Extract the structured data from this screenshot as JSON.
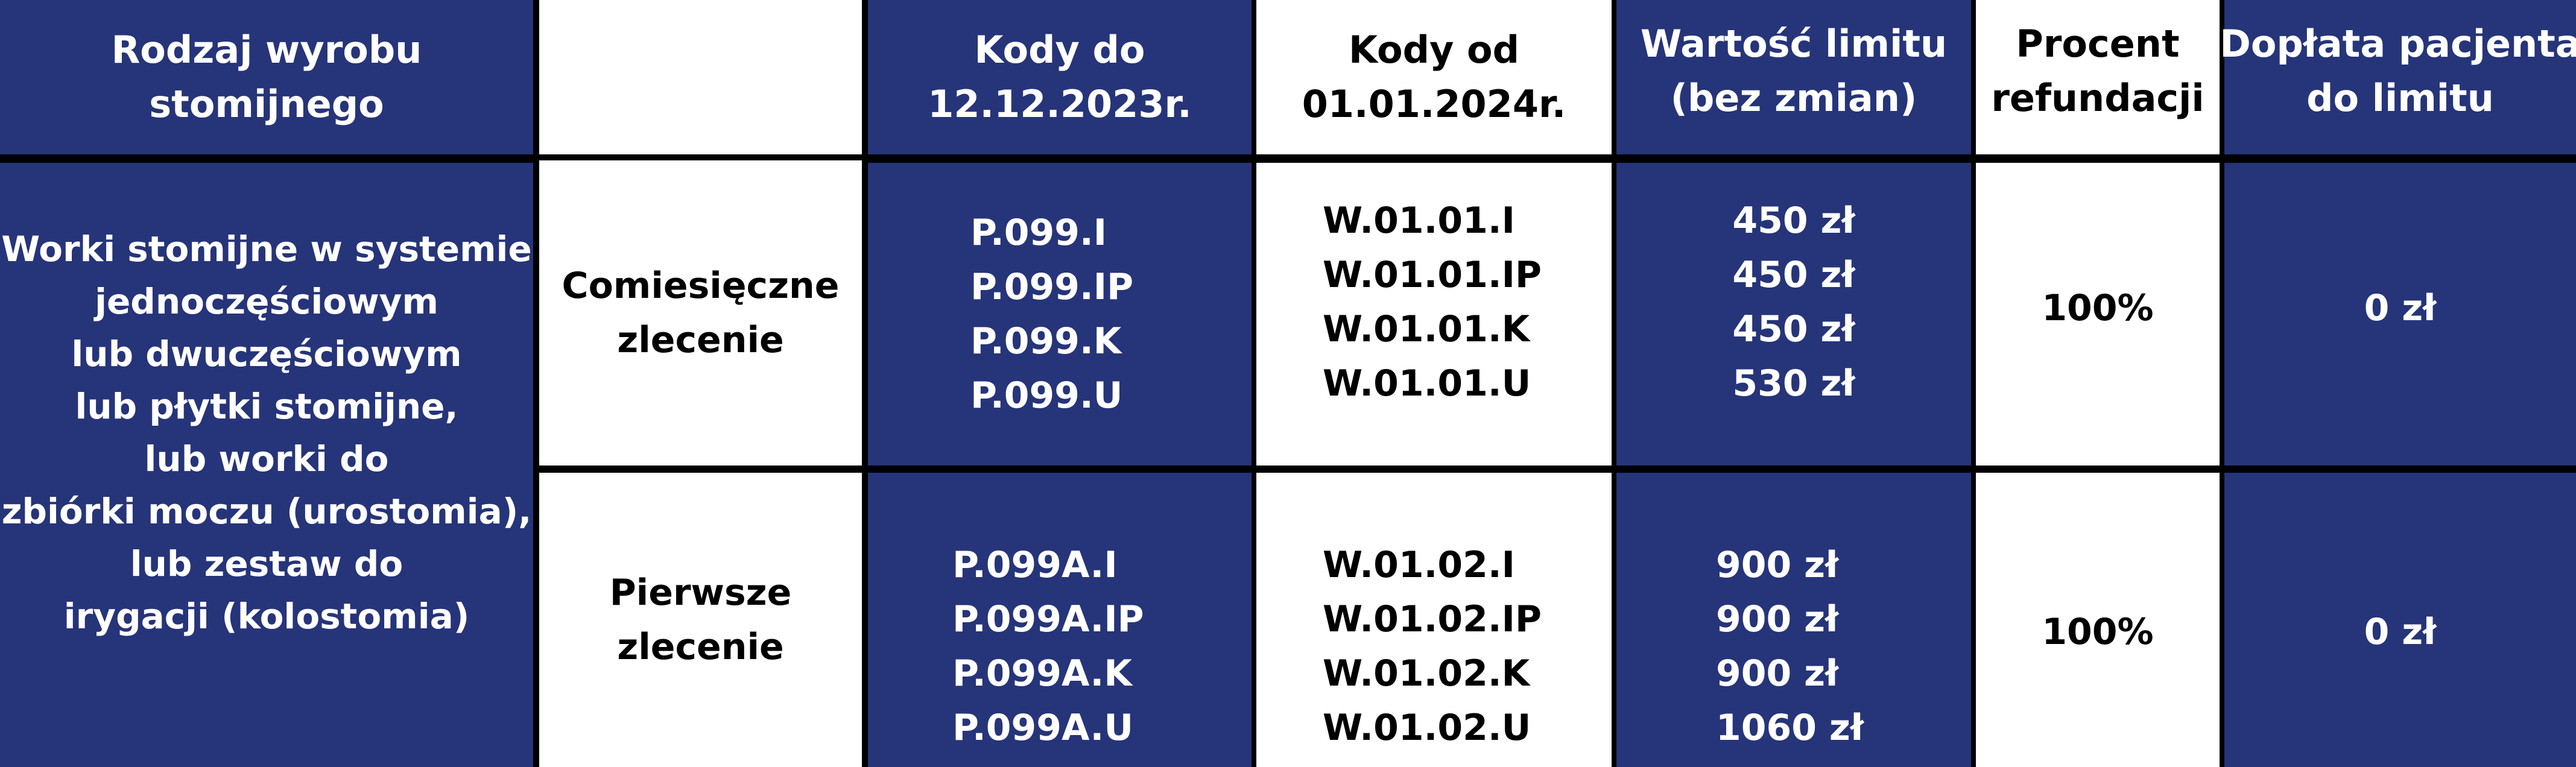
{
  "colors": {
    "blue": "#263479",
    "white": "#ffffff",
    "border": "#000000"
  },
  "header": {
    "col1": [
      "Rodzaj wyrobu",
      "stomijnego"
    ],
    "col2": [],
    "col3": [
      "Kody do",
      "12.12.2023r."
    ],
    "col4": [
      "Kody od",
      "01.01.2024r."
    ],
    "col5": [
      "Wartość limitu",
      "(bez zmian)"
    ],
    "col6": [
      "Procent",
      "refundacji"
    ],
    "col7": [
      "Dopłata pacjenta",
      "do limitu"
    ]
  },
  "product": [
    "Worki stomijne w systemie",
    "jednoczęściowym",
    "lub dwuczęściowym",
    "lub płytki stomijne,",
    "lub worki do",
    "zbiórki moczu (urostomia),",
    "lub zestaw do",
    "irygacji (kolostomia)"
  ],
  "rows": [
    {
      "type": [
        "Comiesięczne",
        "zlecenie"
      ],
      "old_codes": [
        "P.099.I",
        "P.099.IP",
        "P.099.K",
        "P.099.U"
      ],
      "new_codes": [
        "W.01.01.I",
        "W.01.01.IP",
        "W.01.01.K",
        "W.01.01.U"
      ],
      "limits": [
        "450 zł",
        "450 zł",
        "450 zł",
        "530 zł"
      ],
      "refund": "100%",
      "copay": "0 zł"
    },
    {
      "type": [
        "Pierwsze",
        "zlecenie"
      ],
      "old_codes": [
        "P.099A.I",
        "P.099A.IP",
        "P.099A.K",
        "P.099A.U"
      ],
      "new_codes": [
        "W.01.02.I",
        "W.01.02.IP",
        "W.01.02.K",
        "W.01.02.U"
      ],
      "limits": [
        "900 zł",
        "900 zł",
        "900 zł",
        "1060 zł"
      ],
      "refund": "100%",
      "copay": "0 zł"
    }
  ]
}
